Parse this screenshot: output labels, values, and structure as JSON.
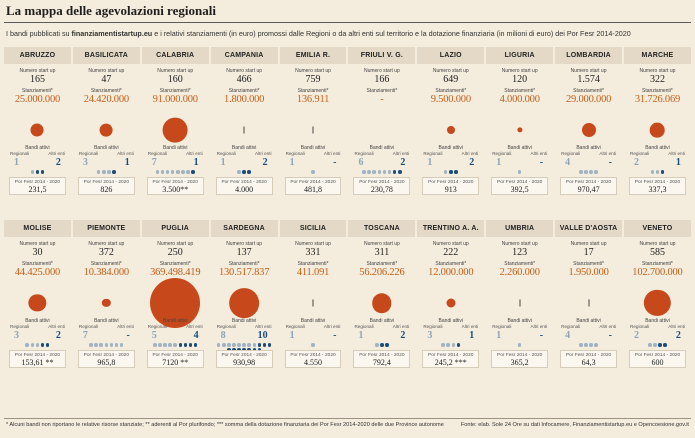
{
  "title": "La mappa delle agevolazioni regionali",
  "subtitle_pre": "I bandi pubblicati su ",
  "subtitle_site": "finanziamentistartup.eu",
  "subtitle_post": " e i relativi stanziamenti (in euro) promossi dalle Regioni o da altri enti sul territorio e la dotazione finanziaria (in milioni di euro) dei Por Fesr 2014-2020",
  "labels": {
    "numero_startup": "Numero start up",
    "stanziamenti": "Stanziamenti*",
    "bandi_attivi": "Bandi attivi",
    "regionali": "Regionali",
    "altri_enti": "Altri enti",
    "por": "Por Fesr 2014 - 2020"
  },
  "colors": {
    "bubble": "#c7481a",
    "amount_text": "#c4601a",
    "regional": "#9fb3c4",
    "other_entities": "#1b4d7b"
  },
  "footnote": "* Alcuni bandi non riportano le relative risorse stanziate; ** aderenti al Por plurifondo; *** somma della dotazione finanziaria dei Por Fesr 2014-2020 delle due Province autonome",
  "source": "Fonte: elab. Sole 24 Ore su dati Infocamere, Finanziamentistartup.eu e Opencoesione.gov.it",
  "chart_data": {
    "type": "bubble",
    "regions": [
      {
        "name": "ABRUZZO",
        "startups": "165",
        "stanziamenti": "25.000.000",
        "value": 25000000,
        "regionali": "1",
        "altri_enti": "2",
        "por": "231,5"
      },
      {
        "name": "BASILICATA",
        "startups": "47",
        "stanziamenti": "24.420.000",
        "value": 24420000,
        "regionali": "3",
        "altri_enti": "1",
        "por": "826"
      },
      {
        "name": "CALABRIA",
        "startups": "160",
        "stanziamenti": "91.000.000",
        "value": 91000000,
        "regionali": "7",
        "altri_enti": "1",
        "por": "3.500**"
      },
      {
        "name": "CAMPANIA",
        "startups": "466",
        "stanziamenti": "1.800.000",
        "value": 1800000,
        "regionali": "1",
        "altri_enti": "2",
        "por": "4.000"
      },
      {
        "name": "EMILIA R.",
        "startups": "759",
        "stanziamenti": "136.911",
        "value": 136911,
        "regionali": "1",
        "altri_enti": "-",
        "por": "481,8"
      },
      {
        "name": "FRIULI V. G.",
        "startups": "166",
        "stanziamenti": "-",
        "value": 0,
        "regionali": "6",
        "altri_enti": "2",
        "por": "230,78"
      },
      {
        "name": "LAZIO",
        "startups": "649",
        "stanziamenti": "9.500.000",
        "value": 9500000,
        "regionali": "1",
        "altri_enti": "2",
        "por": "913"
      },
      {
        "name": "LIGURIA",
        "startups": "120",
        "stanziamenti": "4.000.000",
        "value": 4000000,
        "regionali": "1",
        "altri_enti": "-",
        "por": "392,5"
      },
      {
        "name": "LOMBARDIA",
        "startups": "1.574",
        "stanziamenti": "29.000.000",
        "value": 29000000,
        "regionali": "4",
        "altri_enti": "-",
        "por": "970,47"
      },
      {
        "name": "MARCHE",
        "startups": "322",
        "stanziamenti": "31.726.069",
        "value": 31726069,
        "regionali": "2",
        "altri_enti": "1",
        "por": "337,3"
      },
      {
        "name": "MOLISE",
        "startups": "30",
        "stanziamenti": "44.425.000",
        "value": 44425000,
        "regionali": "3",
        "altri_enti": "2",
        "por": "153,61 **"
      },
      {
        "name": "PIEMONTE",
        "startups": "372",
        "stanziamenti": "10.384.000",
        "value": 10384000,
        "regionali": "7",
        "altri_enti": "-",
        "por": "965,8"
      },
      {
        "name": "PUGLIA",
        "startups": "250",
        "stanziamenti": "369.498.419",
        "value": 369498419,
        "regionali": "5",
        "altri_enti": "4",
        "por": "7120 **"
      },
      {
        "name": "SARDEGNA",
        "startups": "137",
        "stanziamenti": "130.517.837",
        "value": 130517837,
        "regionali": "8",
        "altri_enti": "10",
        "por": "930,98"
      },
      {
        "name": "SICILIA",
        "startups": "331",
        "stanziamenti": "411.091",
        "value": 411091,
        "regionali": "1",
        "altri_enti": "-",
        "por": "4.550"
      },
      {
        "name": "TOSCANA",
        "startups": "311",
        "stanziamenti": "56.206.226",
        "value": 56206226,
        "regionali": "1",
        "altri_enti": "2",
        "por": "792,4"
      },
      {
        "name": "TRENTINO A. A.",
        "startups": "222",
        "stanziamenti": "12.000.000",
        "value": 12000000,
        "regionali": "3",
        "altri_enti": "1",
        "por": "245,2 ***"
      },
      {
        "name": "UMBRIA",
        "startups": "123",
        "stanziamenti": "2.260.000",
        "value": 2260000,
        "regionali": "1",
        "altri_enti": "-",
        "por": "365,2"
      },
      {
        "name": "VALLE D'AOSTA",
        "startups": "17",
        "stanziamenti": "1.950.000",
        "value": 1950000,
        "regionali": "4",
        "altri_enti": "-",
        "por": "64,3"
      },
      {
        "name": "VENETO",
        "startups": "585",
        "stanziamenti": "102.700.000",
        "value": 102700000,
        "regionali": "2",
        "altri_enti": "2",
        "por": "600"
      }
    ]
  }
}
